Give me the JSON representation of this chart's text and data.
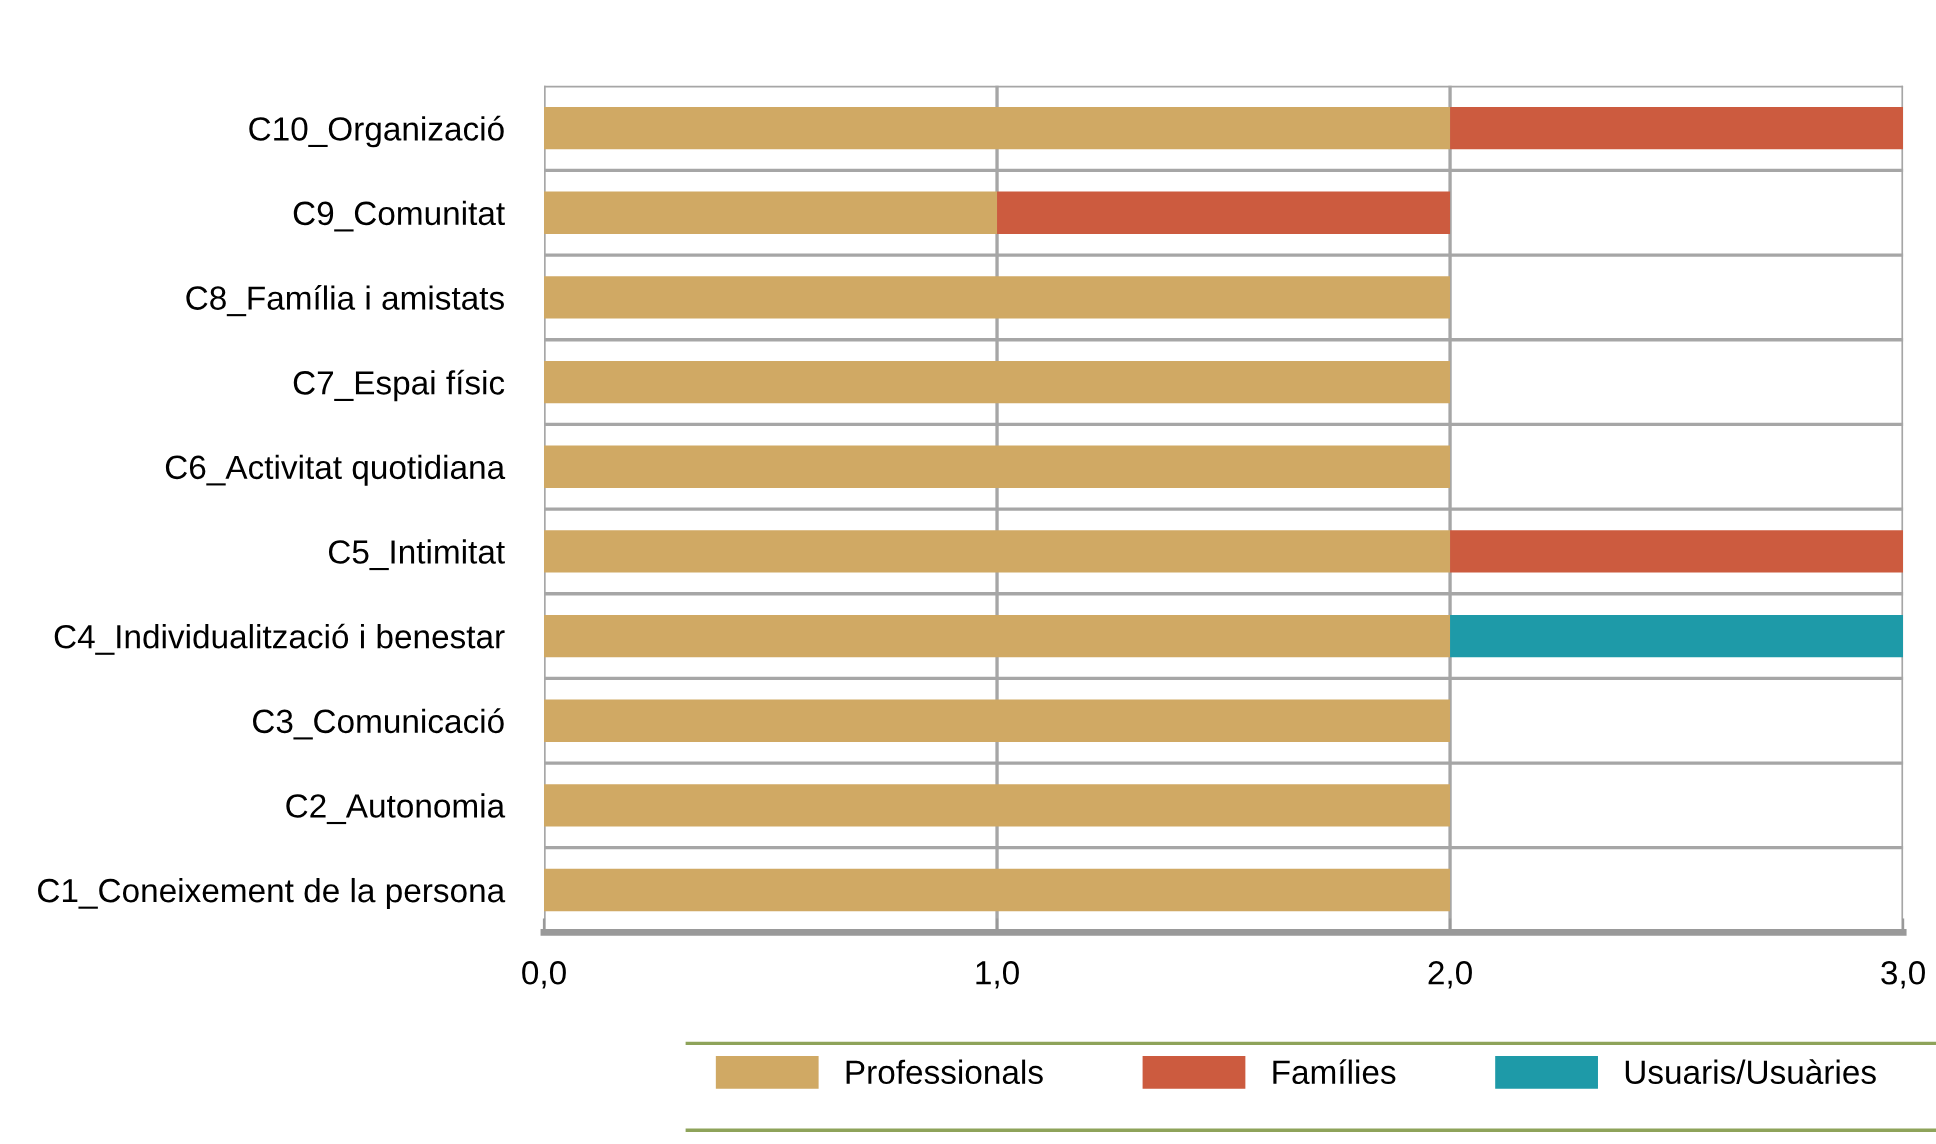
{
  "chart_data": {
    "type": "bar",
    "orientation": "horizontal",
    "stacked": true,
    "categories": [
      "C10_Organizació",
      "C9_Comunitat",
      "C8_Família i amistats",
      "C7_Espai físic",
      "C6_Activitat quotidiana",
      "C5_Intimitat",
      "C4_Individualització i benestar",
      "C3_Comunicació",
      "C2_Autonomia",
      "C1_Coneixement de la persona"
    ],
    "series": [
      {
        "name": "Professionals",
        "color": "#d0a964",
        "values": [
          2,
          1,
          2,
          2,
          2,
          2,
          2,
          2,
          2,
          2
        ]
      },
      {
        "name": "Famílies",
        "color": "#cc5b3f",
        "values": [
          1,
          1,
          null,
          null,
          null,
          1,
          null,
          null,
          null,
          null
        ]
      },
      {
        "name": "Usuaris/Usuàries",
        "color": "#1e9aa8",
        "values": [
          null,
          null,
          null,
          null,
          null,
          null,
          1,
          null,
          null,
          null
        ]
      }
    ],
    "xlim": [
      0,
      3
    ],
    "xticks": [
      {
        "value": 0,
        "label": "0,0"
      },
      {
        "value": 1,
        "label": "1,0"
      },
      {
        "value": 2,
        "label": "2,0"
      },
      {
        "value": 3,
        "label": "3,0"
      }
    ],
    "grid": true,
    "legend": "bottom"
  }
}
